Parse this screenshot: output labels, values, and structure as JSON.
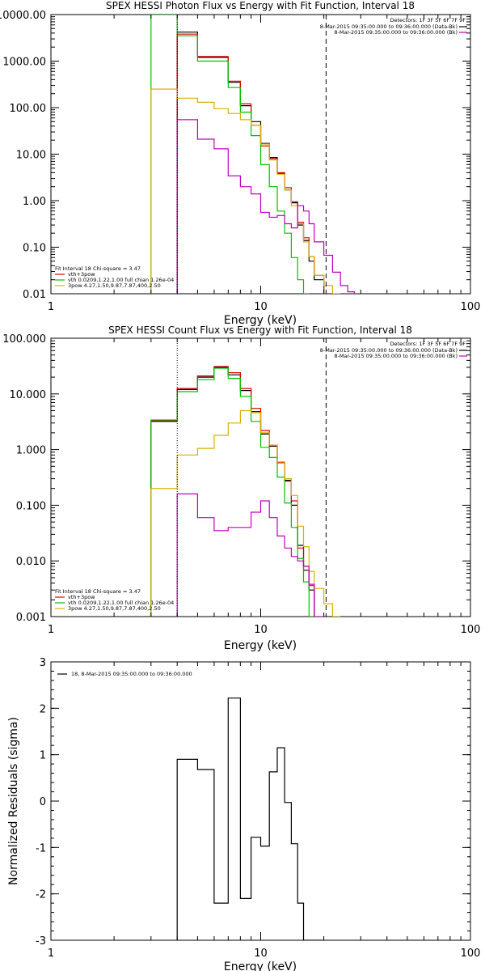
{
  "chart_data": [
    {
      "type": "line",
      "title": "SPEX HESSI Photon Flux vs Energy with Fit Function, Interval 18",
      "xlabel": "Energy (keV)",
      "ylabel": "",
      "xscale": "log",
      "yscale": "log",
      "xlim": [
        1,
        100
      ],
      "ylim": [
        0.01,
        10000
      ],
      "x_ticks": [
        1,
        10,
        100
      ],
      "x_tick_labels": [
        "1",
        "10",
        "100"
      ],
      "y_ticks": [
        0.01,
        0.1,
        1,
        10,
        100,
        1000,
        10000
      ],
      "y_tick_labels": [
        "0.01",
        "0.10",
        "1.00",
        "10.00",
        "100.00",
        "1000.00",
        "10000.00"
      ],
      "bin_edges": [
        3.0,
        4.0,
        5.0,
        6.0,
        7.0,
        8.0,
        9.0,
        10.0,
        11.0,
        12.0,
        13.0,
        14.0,
        15.0,
        16.0,
        17.0,
        18.0,
        20.0,
        22.0,
        24.0,
        26.0,
        28.0
      ],
      "vlines": [
        {
          "x": 4.0,
          "style": "dotted"
        },
        {
          "x": 20.5,
          "style": "dashed"
        }
      ],
      "legend_header": "Detectors: 1F 3F 5F 6F 7F 9F",
      "legend_entries": [
        {
          "text": "8-Mar-2015 09:35:00.000 to 09:36:00.000 (Data-Bk)",
          "color": "#000000"
        },
        {
          "text": "8-Mar-2015 09:35:00.000 to 09:36:00.000 (Bk)",
          "color": "#c000c0"
        }
      ],
      "fit_legend": [
        {
          "text": "Fit Interval 18   Chi-square = 3.47",
          "color": "#000000"
        },
        {
          "text": "vth+3pow",
          "color": "#e00000"
        },
        {
          "text": "vth 0.0209,1.22,1.00  full chian 1.26e-04",
          "color": "#00c000"
        },
        {
          "text": "3pow 4.27,1.50,9.87,7.87,400,2.50",
          "color": "#d8b000"
        }
      ],
      "series": [
        {
          "color": "#000000",
          "values": [
            null,
            4200,
            1200,
            1200,
            350,
            110,
            50,
            17,
            8.5,
            3.8,
            1.7,
            0.9,
            0.3,
            0.14,
            0.05,
            0.02,
            null,
            null,
            null,
            null
          ]
        },
        {
          "color": "#e00000",
          "values": [
            null,
            3800,
            1250,
            1250,
            370,
            120,
            42,
            15,
            8.0,
            4.0,
            1.9,
            0.95,
            0.34,
            0.16,
            0.062,
            0.025,
            null,
            null,
            null,
            null
          ]
        },
        {
          "color": "#00c000",
          "values": [
            10000,
            3500,
            1000,
            1000,
            270,
            80,
            25,
            6.0,
            2.0,
            0.6,
            0.2,
            0.06,
            0.02,
            0.0099,
            null,
            null,
            null,
            null,
            null,
            null
          ]
        },
        {
          "color": "#d8b000",
          "values": [
            250,
            160,
            130,
            95,
            75,
            55,
            42,
            16.5,
            7.5,
            3.7,
            1.7,
            0.78,
            0.32,
            0.13,
            0.062,
            0.025,
            0.015,
            0.0099,
            null,
            null
          ]
        },
        {
          "color": "#c000c0",
          "values": [
            null,
            55,
            21,
            13,
            3.4,
            2.0,
            1.4,
            0.56,
            0.44,
            0.48,
            0.32,
            0.26,
            0.78,
            0.6,
            0.32,
            0.13,
            0.067,
            0.029,
            0.015,
            0.011
          ]
        }
      ]
    },
    {
      "type": "line",
      "title": "SPEX HESSI Count Flux vs Energy with Fit Function, Interval 18",
      "xlabel": "Energy (keV)",
      "ylabel": "",
      "xscale": "log",
      "yscale": "log",
      "xlim": [
        1,
        100
      ],
      "ylim": [
        0.001,
        100
      ],
      "x_ticks": [
        1,
        10,
        100
      ],
      "x_tick_labels": [
        "1",
        "10",
        "100"
      ],
      "y_ticks": [
        0.001,
        0.01,
        0.1,
        1,
        10,
        100
      ],
      "y_tick_labels": [
        "0.001",
        "0.010",
        "0.100",
        "1.000",
        "10.000",
        "100.000"
      ],
      "bin_edges": [
        3.0,
        4.0,
        5.0,
        6.0,
        7.0,
        8.0,
        9.0,
        10.0,
        11.0,
        12.0,
        13.0,
        14.0,
        15.0,
        16.0,
        17.0,
        18.0,
        20.0,
        22.0,
        24.0,
        26.0,
        28.0
      ],
      "vlines": [
        {
          "x": 4.0,
          "style": "dotted"
        },
        {
          "x": 20.5,
          "style": "dashed"
        }
      ],
      "legend_header": "Detectors: 1F 3F 5F 6F 7F 9F",
      "legend_entries": [
        {
          "text": "8-Mar-2015 09:35:00.000 to 09:36:00.000 (Data-Bk)",
          "color": "#000000"
        },
        {
          "text": "8-Mar-2015 09:35:00.000 to 09:36:00.000 (Bk)",
          "color": "#c000c0"
        }
      ],
      "fit_legend": [
        {
          "text": "Fit Interval 18   Chi-square = 3.47",
          "color": "#000000"
        },
        {
          "text": "vth+3pow",
          "color": "#e00000"
        },
        {
          "text": "vth 0.0209,1.22,1.00  full chian 1.26e-04",
          "color": "#00c000"
        },
        {
          "text": "3pow 4.27,1.50,9.87,7.87,400,2.50",
          "color": "#d8b000"
        }
      ],
      "series": [
        {
          "color": "#000000",
          "values": [
            3.2,
            12,
            20,
            30,
            22,
            11.5,
            4.8,
            1.9,
            1.15,
            0.58,
            0.28,
            0.1,
            0.019,
            0.0068,
            0.003,
            null,
            null,
            null,
            null,
            null
          ]
        },
        {
          "color": "#e00000",
          "values": [
            3.3,
            12.5,
            21,
            31,
            24,
            12.5,
            5.5,
            2.2,
            1.2,
            0.58,
            0.27,
            0.12,
            0.017,
            0.008,
            0.0036,
            null,
            null,
            null,
            null,
            null
          ]
        },
        {
          "color": "#00c000",
          "values": [
            3.4,
            11,
            18,
            29,
            19,
            9,
            3.2,
            1.1,
            0.72,
            0.32,
            0.11,
            0.04,
            0.011,
            0.0042,
            0.0009,
            null,
            null,
            null,
            null,
            null
          ]
        },
        {
          "color": "#d8b000",
          "values": [
            0.2,
            0.8,
            1.05,
            1.8,
            3.0,
            5.0,
            4.6,
            2.0,
            1.2,
            0.6,
            0.3,
            0.15,
            0.042,
            0.018,
            0.0065,
            0.0032,
            0.0017,
            0.0009,
            null,
            null
          ]
        },
        {
          "color": "#c000c0",
          "values": [
            null,
            0.16,
            0.06,
            0.035,
            0.04,
            0.04,
            0.075,
            0.12,
            0.06,
            0.028,
            0.017,
            0.012,
            0.01,
            0.008,
            0.0038,
            0.0009,
            null,
            null,
            null,
            null
          ]
        }
      ]
    },
    {
      "type": "line",
      "title": "",
      "xlabel": "Energy (keV)",
      "ylabel": "Normalized Residuals (sigma)",
      "xscale": "log",
      "yscale": "linear",
      "xlim": [
        1,
        100
      ],
      "ylim": [
        -3,
        3
      ],
      "x_ticks": [
        1,
        10,
        100
      ],
      "x_tick_labels": [
        "1",
        "10",
        "100"
      ],
      "y_ticks": [
        -3,
        -2,
        -1,
        0,
        1,
        2,
        3
      ],
      "y_tick_labels": [
        "-3",
        "-2",
        "-1",
        "0",
        "1",
        "2",
        "3"
      ],
      "bin_edges": [
        4.0,
        5.0,
        6.0,
        7.0,
        8.0,
        9.0,
        10.0,
        11.0,
        12.0,
        13.0,
        14.0,
        15.0,
        16.0,
        17.0,
        18.0,
        20.0
      ],
      "legend_entries": [
        {
          "text": "18,  8-Mar-2015 09:35:00.000 to 09:36:00.000",
          "color": "#000000"
        }
      ],
      "series": [
        {
          "color": "#000000",
          "values": [
            0.9,
            0.68,
            -2.2,
            2.22,
            -2.1,
            -0.78,
            -0.97,
            0.63,
            1.15,
            -0.03,
            -0.92,
            -2.2,
            -3.0,
            -3.0,
            -3.0
          ]
        }
      ]
    }
  ]
}
